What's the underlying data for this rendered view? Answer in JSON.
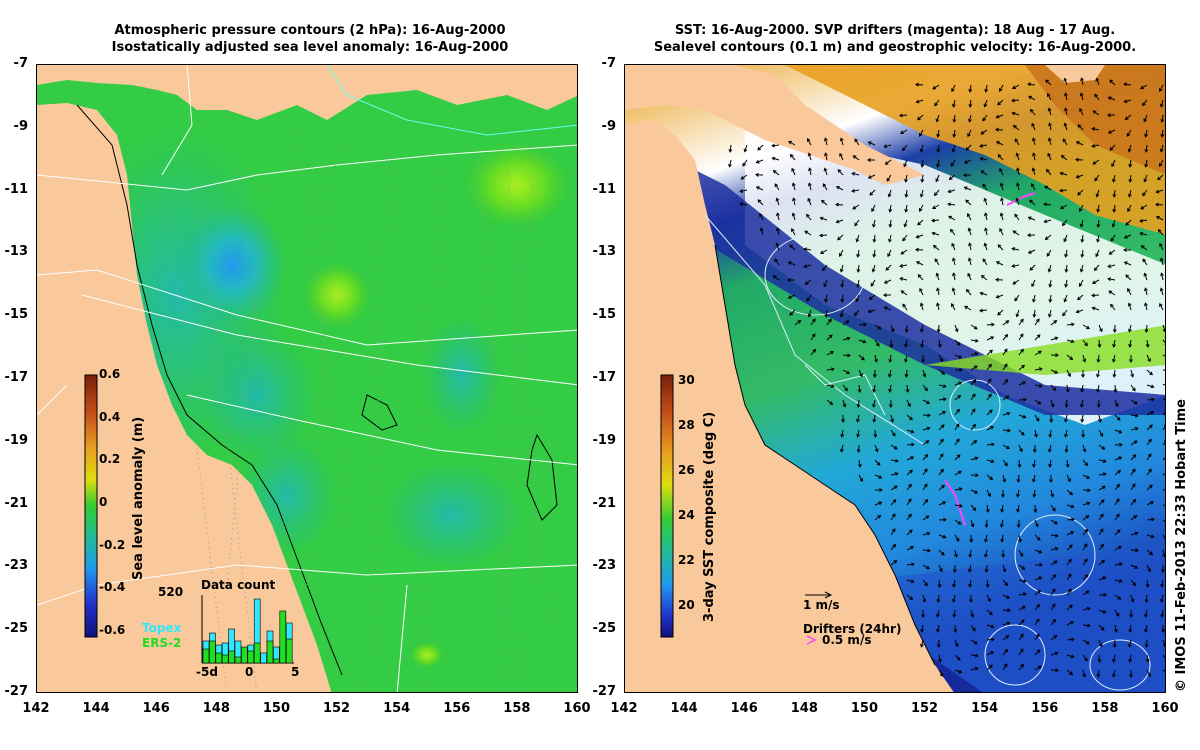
{
  "left_panel": {
    "title_line1": "Atmospheric pressure contours (2 hPa): 16-Aug-2000",
    "title_line2": "Isostatically adjusted sea level anomaly: 16-Aug-2000",
    "colorbar_label": "Sea level anomaly (m)",
    "colorbar_ticks": [
      "0.6",
      "0.4",
      "0.2",
      "0",
      "-0.2",
      "-0.4",
      "-0.6"
    ],
    "data_count": {
      "title": "Data count",
      "max_label": "520",
      "x_ticks": [
        "-5d",
        "0",
        "5"
      ],
      "series": [
        {
          "name": "Topex",
          "color": "#33e6ff"
        },
        {
          "name": "ERS-2",
          "color": "#22dd22"
        }
      ]
    }
  },
  "right_panel": {
    "title_line1": "SST: 16-Aug-2000. SVP drifters (magenta): 18 Aug - 17 Aug.",
    "title_line2": "Sealevel contours (0.1 m) and geostrophic velocity: 16-Aug-2000.",
    "colorbar_label": "3-day SST composite (deg C)",
    "colorbar_ticks": [
      "30",
      "28",
      "26",
      "24",
      "22",
      "20"
    ],
    "velocity_scale_label": "1 m/s",
    "drifters_label": "Drifters (24hr)",
    "drifter_speed_label": "0.5 m/s"
  },
  "axes": {
    "y_ticks": [
      "-7",
      "-9",
      "-11",
      "-13",
      "-15",
      "-17",
      "-19",
      "-21",
      "-23",
      "-25",
      "-27"
    ],
    "x_ticks": [
      "142",
      "144",
      "146",
      "148",
      "150",
      "152",
      "154",
      "156",
      "158",
      "160"
    ]
  },
  "credit": "© IMOS 11-Feb-2013 22:33 Hobart Time",
  "colors": {
    "land": "#f9c89b",
    "ocean_green": "#33cc33",
    "magenta": "#ff44ff"
  }
}
